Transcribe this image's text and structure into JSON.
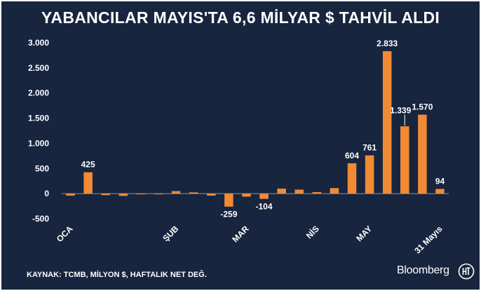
{
  "header": {
    "title": "YABANCILAR MAYIS'TA 6,6 MİLYAR $ TAHVİL ALDI"
  },
  "footer": {
    "source": "KAYNAK: TCMB, MİLYON $, HAFTALIK NET DEĞ.",
    "brand": "Bloomberg"
  },
  "colors": {
    "background": "#17253e",
    "bar": "#f28a35",
    "text": "#ffffff",
    "baseline": "#8c95a5"
  },
  "chart_data": {
    "type": "bar",
    "title": "YABANCILAR MAYIS'TA 6,6 MİLYAR $ TAHVİL ALDI",
    "ylim": [
      -500,
      3000
    ],
    "y_ticks": [
      -500,
      0,
      500,
      1000,
      1500,
      2000,
      2500,
      3000
    ],
    "y_tick_labels": [
      "-500",
      "0",
      "500",
      "1.000",
      "1.500",
      "2.000",
      "2.500",
      "3.000"
    ],
    "grid": false,
    "values": [
      -40,
      425,
      -30,
      -45,
      -10,
      -8,
      50,
      25,
      -40,
      -259,
      -60,
      -104,
      100,
      80,
      30,
      110,
      604,
      761,
      2833,
      1339,
      1570,
      94
    ],
    "data_labels": [
      {
        "index": 1,
        "text": "425"
      },
      {
        "index": 9,
        "text": "-259"
      },
      {
        "index": 11,
        "text": "-104"
      },
      {
        "index": 16,
        "text": "604"
      },
      {
        "index": 17,
        "text": "761"
      },
      {
        "index": 18,
        "text": "2.833"
      },
      {
        "index": 19,
        "text": "1.339"
      },
      {
        "index": 20,
        "text": "1.570"
      },
      {
        "index": 21,
        "text": "94"
      }
    ],
    "x_tick_labels": [
      {
        "index": 0,
        "text": "OCA"
      },
      {
        "index": 6,
        "text": "ŞUB"
      },
      {
        "index": 10,
        "text": "MAR"
      },
      {
        "index": 14,
        "text": "NİS"
      },
      {
        "index": 17,
        "text": "MAY"
      },
      {
        "index": 21,
        "text": "31 Mayıs"
      }
    ]
  }
}
